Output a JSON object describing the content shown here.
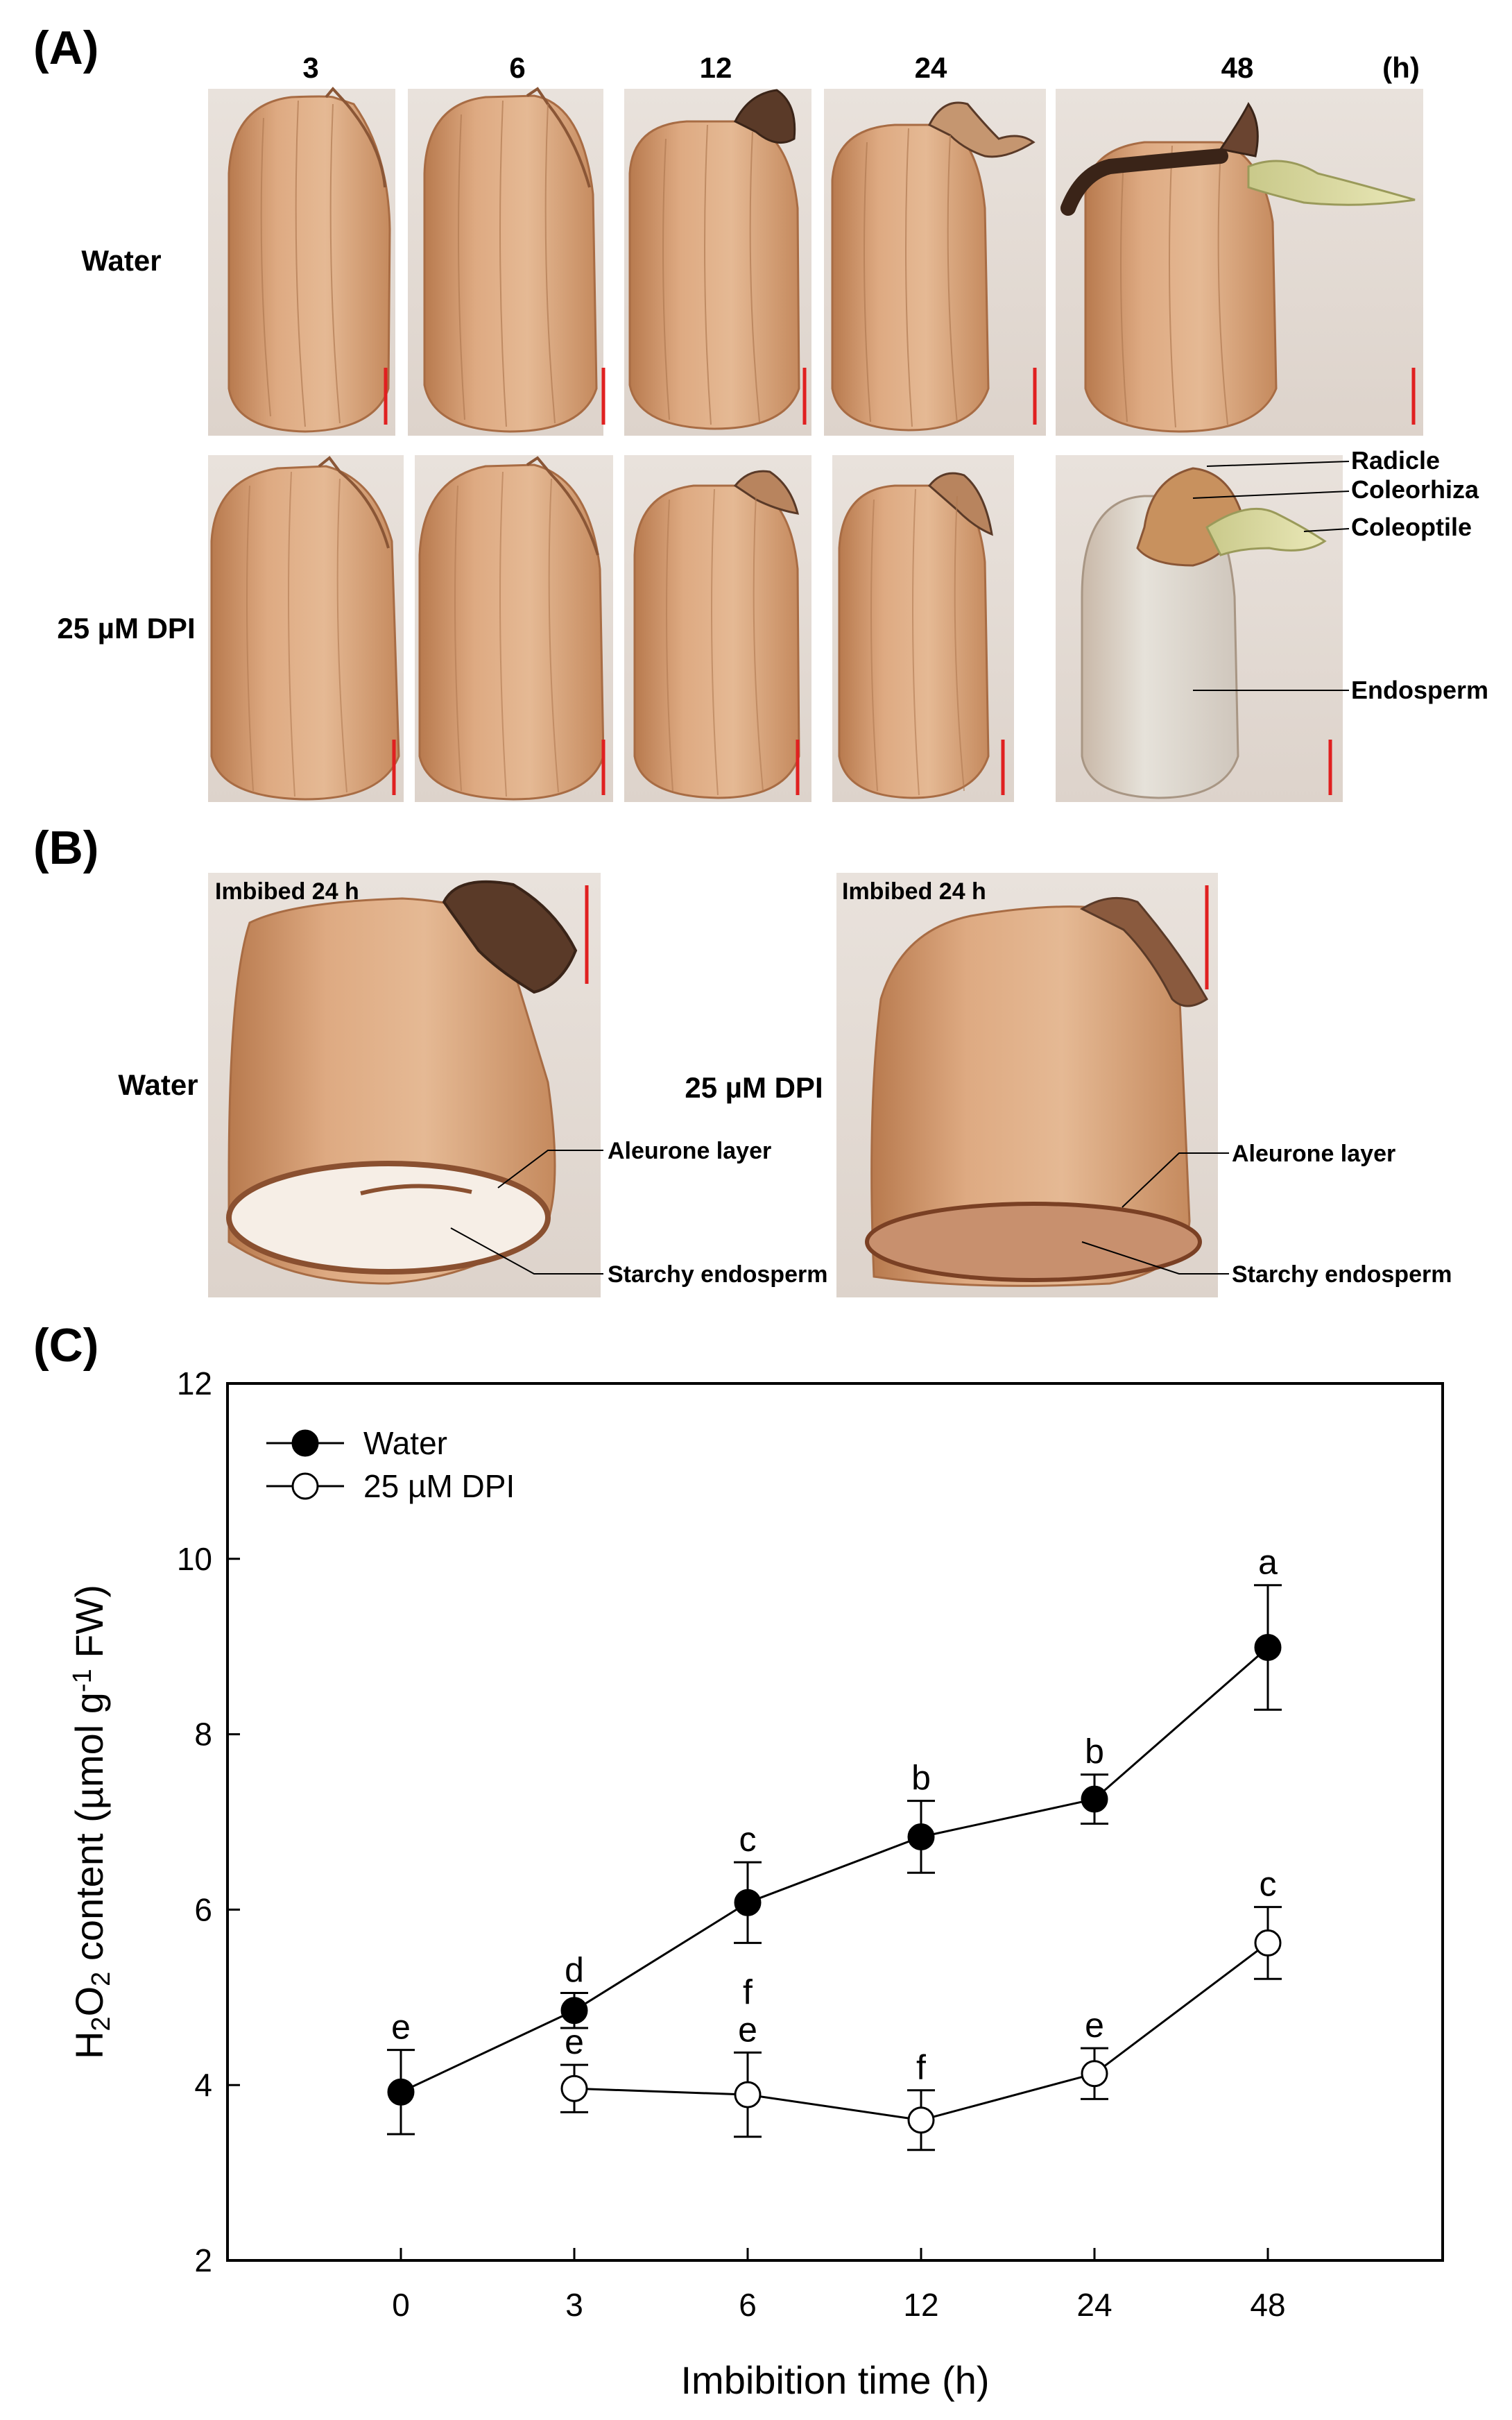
{
  "panelA": {
    "label": "(A)",
    "time_headers": [
      "3",
      "6",
      "12",
      "24",
      "48"
    ],
    "time_unit": "(h)",
    "rows": [
      "Water",
      "25 µM DPI"
    ],
    "annotations": [
      "Radicle",
      "Coleorhiza",
      "Coleoptile",
      "Endosperm"
    ],
    "colors": {
      "seed": "#d9a37a",
      "seed_dark": "#b8784e",
      "scale_bar": "#e02020",
      "shoot": "#d6d88a",
      "root": "#3a2418",
      "endosperm_dpi": "#dcdad4"
    }
  },
  "panelB": {
    "label": "(B)",
    "captions": [
      "Imbibed 24 h",
      "Imbibed 24 h"
    ],
    "rows": [
      "Water",
      "25 µM DPI"
    ],
    "annotations": [
      "Aleurone layer",
      "Starchy endosperm",
      "Aleurone layer",
      "Starchy endosperm"
    ]
  },
  "panelC": {
    "label": "(C)"
  },
  "chart_data": {
    "type": "line",
    "x_categories": [
      "0",
      "3",
      "6",
      "12",
      "24",
      "48"
    ],
    "xlabel": "Imbibition time (h)",
    "ylabel": "H2O2 content (µmol g-1 FW)",
    "ylim": [
      2,
      12
    ],
    "yticks": [
      2,
      4,
      6,
      8,
      10,
      12
    ],
    "legend_position": "top-left",
    "series": [
      {
        "name": "Water",
        "marker": "filled-circle",
        "x": [
          "0",
          "3",
          "6",
          "12",
          "24",
          "48"
        ],
        "values": [
          3.92,
          4.85,
          6.08,
          6.83,
          7.26,
          8.99
        ],
        "errors": [
          0.48,
          0.2,
          0.46,
          0.41,
          0.28,
          0.71
        ],
        "letters": [
          "e",
          "d",
          "c",
          "b",
          "b",
          "a"
        ]
      },
      {
        "name": "25 µM DPI",
        "marker": "open-circle",
        "x": [
          "3",
          "6",
          "12",
          "24",
          "48"
        ],
        "values": [
          3.96,
          3.89,
          3.6,
          4.13,
          5.62
        ],
        "errors": [
          0.27,
          0.48,
          0.34,
          0.29,
          0.41
        ],
        "letters": [
          "e",
          "e",
          "f",
          "e",
          "c"
        ]
      }
    ],
    "extra_letters": [
      {
        "x": "6",
        "text": "f",
        "near": "25 µM DPI"
      }
    ]
  }
}
